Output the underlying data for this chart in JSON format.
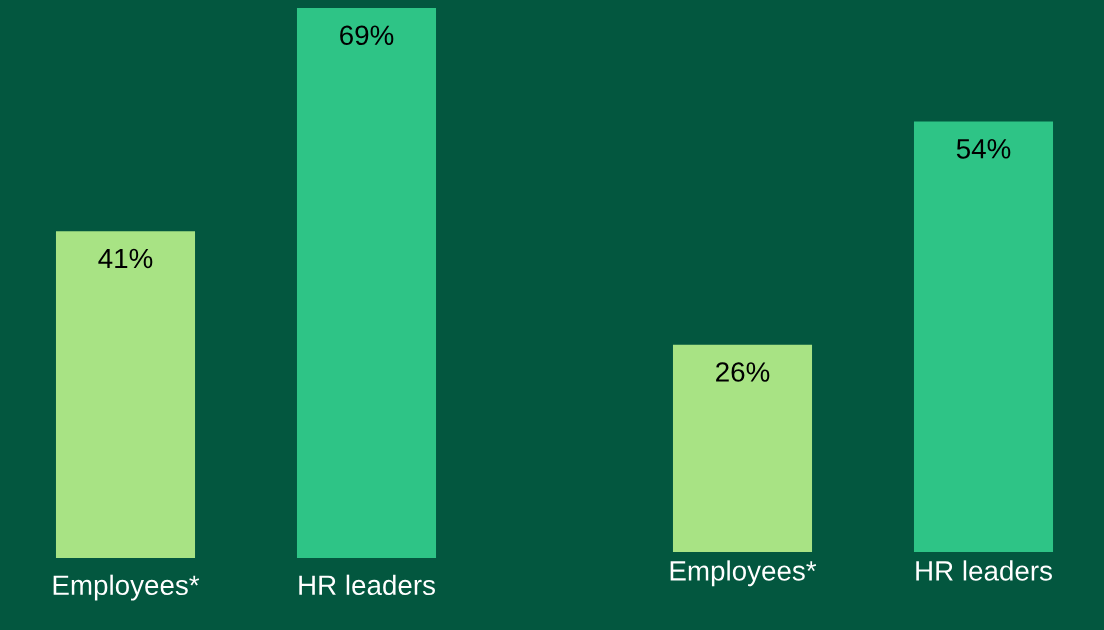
{
  "chart_data": [
    {
      "type": "bar",
      "categories": [
        "Employees*",
        "HR leaders"
      ],
      "values": [
        41,
        69
      ],
      "colors": [
        "#a8e384",
        "#2ec486"
      ],
      "value_labels": [
        "41%",
        "69%"
      ],
      "ylim": [
        0,
        69
      ],
      "tick_labels": "x"
    },
    {
      "type": "bar",
      "categories": [
        "Employees*",
        "HR leaders"
      ],
      "values": [
        26,
        54
      ],
      "colors": [
        "#a8e384",
        "#2ec486"
      ],
      "value_labels": [
        "26%",
        "54%"
      ],
      "ylim": [
        0,
        69
      ],
      "tick_labels": "x"
    }
  ]
}
